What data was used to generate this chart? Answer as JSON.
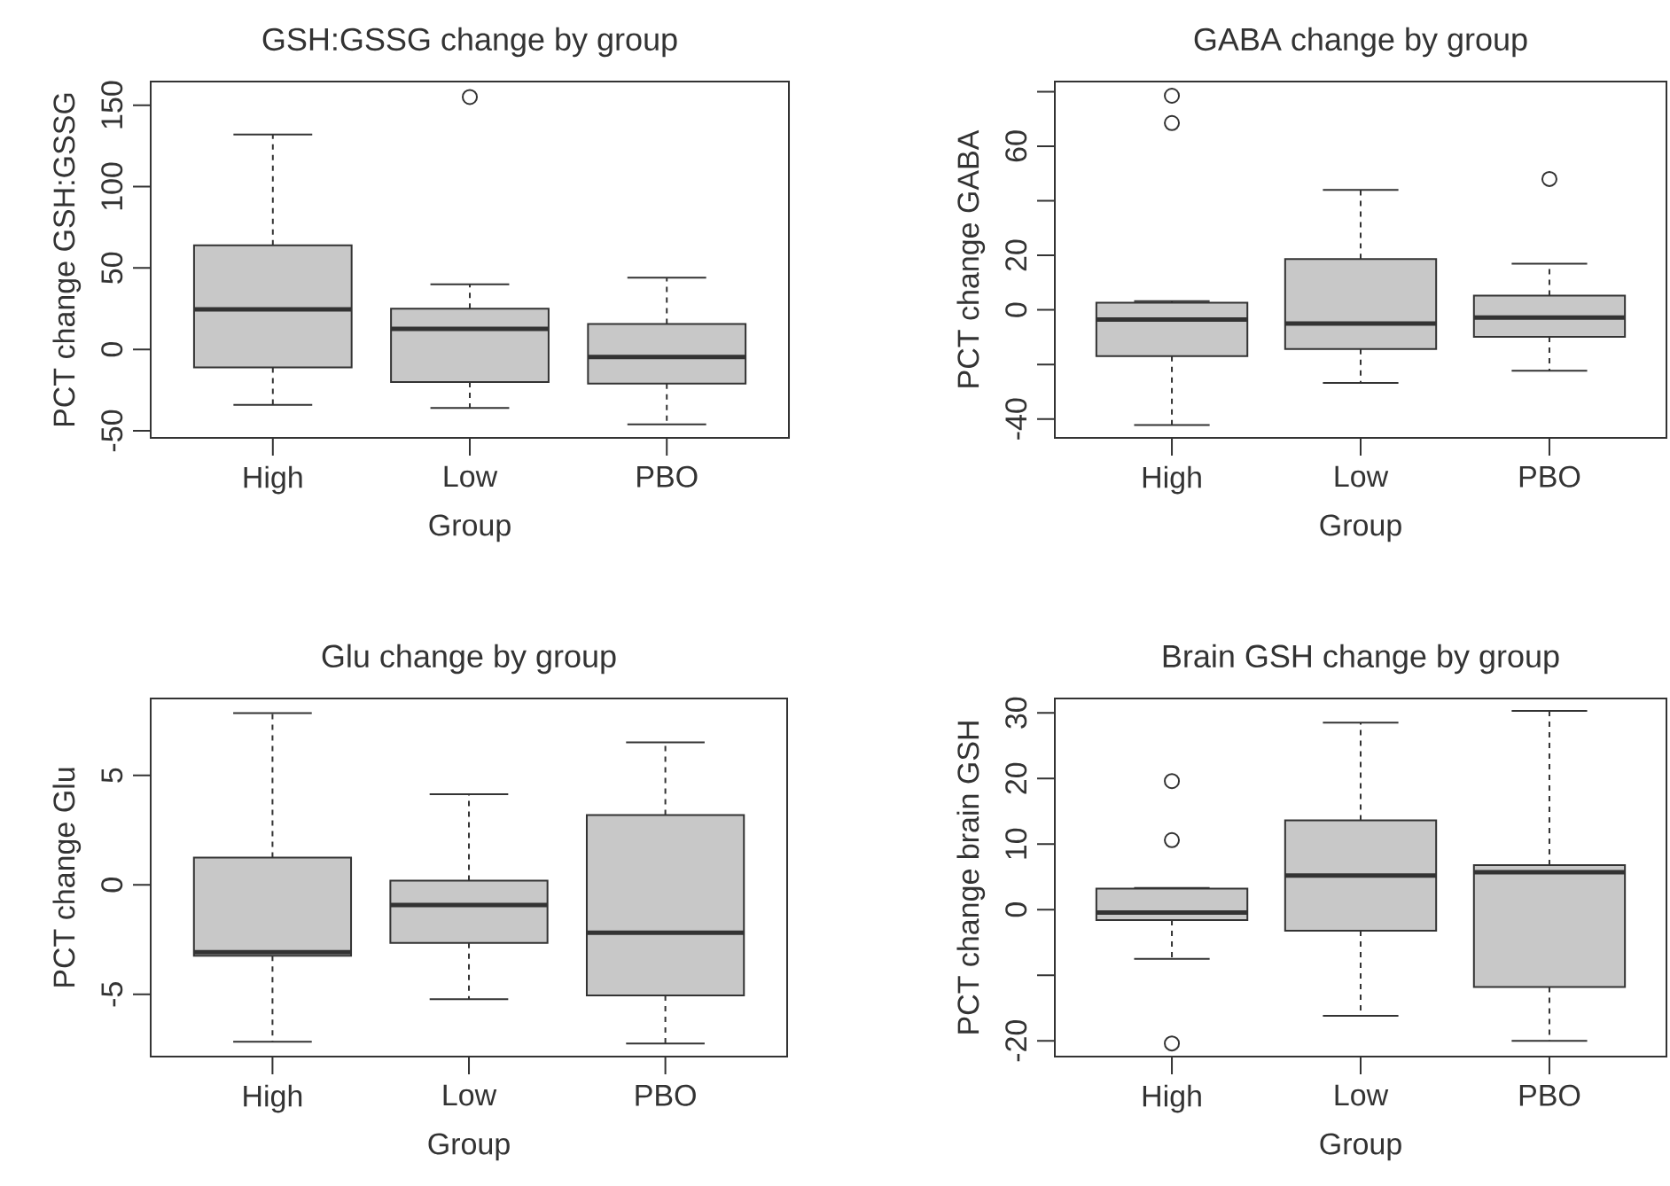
{
  "chart_data": [
    {
      "type": "box",
      "title": "GSH:GSSG change by group",
      "xlabel": "Group",
      "ylabel": "PCT change GSH:GSSG",
      "categories": [
        "High",
        "Low",
        "PBO"
      ],
      "boxes": [
        {
          "low": -34,
          "q1": -11,
          "median": 24.6,
          "q3": 64,
          "high": 132
        },
        {
          "low": -36,
          "q1": -20,
          "median": 12.7,
          "q3": 25,
          "high": 40,
          "outliers": [
            155
          ]
        },
        {
          "low": -46,
          "q1": -21,
          "median": -4.7,
          "q3": 15.6,
          "high": 44
        }
      ],
      "ylim": [
        -54.3,
        164.5
      ],
      "yticks": [
        -50,
        0,
        50,
        100,
        150
      ]
    },
    {
      "type": "box",
      "title": "GABA change by group",
      "xlabel": "Group",
      "ylabel": "PCT change GABA",
      "categories": [
        "High",
        "Low",
        "PBO"
      ],
      "boxes": [
        {
          "low": -42.2,
          "q1": -16.9,
          "median": -3.5,
          "q3": 2.6,
          "high": 3.2,
          "outliers": [
            78.5,
            68.5
          ]
        },
        {
          "low": -26.8,
          "q1": -14.3,
          "median": -5,
          "q3": 18.6,
          "high": 44
        },
        {
          "low": -22.3,
          "q1": -9.9,
          "median": -2.8,
          "q3": 5.2,
          "high": 16.9,
          "outliers": [
            48
          ]
        }
      ],
      "ylim": [
        -46.9,
        83.7
      ],
      "yticks": [
        -40,
        {
          "value": -20,
          "label": null
        },
        0,
        20,
        {
          "value": 40,
          "label": null
        },
        60,
        {
          "value": 80,
          "label": null
        }
      ]
    },
    {
      "type": "box",
      "title": "Glu change by group",
      "xlabel": "Group",
      "ylabel": "PCT change Glu",
      "categories": [
        "High",
        "Low",
        "PBO"
      ],
      "boxes": [
        {
          "low": -7.16,
          "q1": -3.24,
          "median": -3.08,
          "q3": 1.24,
          "high": 7.84
        },
        {
          "low": -5.22,
          "q1": -2.65,
          "median": -0.92,
          "q3": 0.19,
          "high": 4.14
        },
        {
          "low": -7.24,
          "q1": -5.05,
          "median": -2.19,
          "q3": 3.19,
          "high": 6.51
        }
      ],
      "ylim": [
        -7.84,
        8.51
      ],
      "yticks": [
        -5,
        0,
        5
      ]
    },
    {
      "type": "box",
      "title": "Brain GSH change by group",
      "xlabel": "Group",
      "ylabel": "PCT change brain GSH",
      "categories": [
        "High",
        "Low",
        "PBO"
      ],
      "boxes": [
        {
          "low": -7.5,
          "q1": -1.6,
          "median": -0.45,
          "q3": 3.2,
          "high": 3.3,
          "outliers": [
            19.6,
            10.6,
            -20.4
          ]
        },
        {
          "low": -16.2,
          "q1": -3.2,
          "median": 5.2,
          "q3": 13.6,
          "high": 28.5
        },
        {
          "low": -20,
          "q1": -11.8,
          "median": 5.7,
          "q3": 6.8,
          "high": 30.3
        }
      ],
      "ylim": [
        -22.4,
        32.2
      ],
      "yticks": [
        -20,
        {
          "value": -10,
          "label": null
        },
        0,
        10,
        20,
        30
      ]
    }
  ]
}
